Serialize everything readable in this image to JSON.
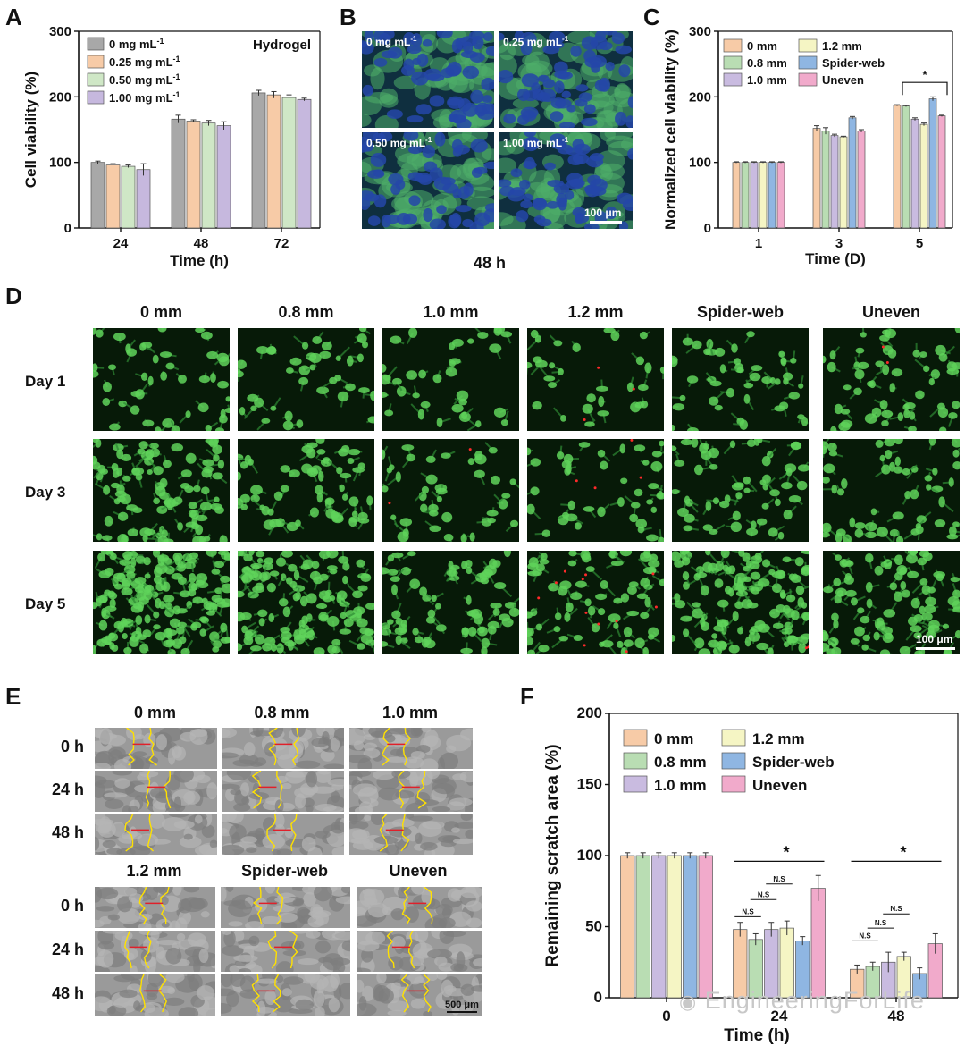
{
  "panels": {
    "A": {
      "letter": "A",
      "chart_data": {
        "type": "bar",
        "title": "Hydrogel",
        "xlabel": "Time (h)",
        "ylabel": "Cell viability (%)",
        "ylim": [
          0,
          300
        ],
        "yticks": [
          "0",
          "100",
          "200",
          "300"
        ],
        "categories": [
          "24",
          "48",
          "72"
        ],
        "legend_position": "top-left",
        "series": [
          {
            "name": "0 mg mL",
            "sup": "-1",
            "color": "#a8a8a8",
            "values": [
              100,
              166,
              206
            ],
            "errors": [
              2,
              6,
              4
            ]
          },
          {
            "name": "0.25 mg mL",
            "sup": "-1",
            "color": "#f7cba7",
            "values": [
              96,
              163,
              203
            ],
            "errors": [
              2,
              2,
              5
            ]
          },
          {
            "name": "0.50 mg mL",
            "sup": "-1",
            "color": "#cfe7c6",
            "values": [
              94,
              160,
              199
            ],
            "errors": [
              2,
              4,
              4
            ]
          },
          {
            "name": "1.00 mg mL",
            "sup": "-1",
            "color": "#c6b8de",
            "values": [
              89,
              156,
              196
            ],
            "errors": [
              9,
              6,
              2
            ]
          }
        ]
      }
    },
    "B": {
      "letter": "B",
      "caption": "48 h",
      "images": [
        {
          "label": "0 mg mL",
          "sup": "-1"
        },
        {
          "label": "0.25 mg mL",
          "sup": "-1"
        },
        {
          "label": "0.50 mg mL",
          "sup": "-1"
        },
        {
          "label": "1.00 mg mL",
          "sup": "-1"
        }
      ],
      "scale": "100 μm"
    },
    "C": {
      "letter": "C",
      "chart_data": {
        "type": "bar",
        "xlabel": "Time (D)",
        "ylabel": "Normalized cell viability (%)",
        "ylim": [
          0,
          300
        ],
        "yticks": [
          "0",
          "100",
          "200",
          "300"
        ],
        "categories": [
          "1",
          "3",
          "5"
        ],
        "legend_position": "top-left",
        "significance": {
          "label": "*",
          "category": "5"
        },
        "series": [
          {
            "name": "0 mm",
            "color": "#f7cba7",
            "values": [
              100,
              152,
              187
            ],
            "errors": [
              1,
              4,
              1
            ]
          },
          {
            "name": "0.8 mm",
            "color": "#b9ddb3",
            "values": [
              100,
              148,
              186
            ],
            "errors": [
              1,
              5,
              1
            ]
          },
          {
            "name": "1.0 mm",
            "color": "#c9bbe0",
            "values": [
              100,
              141,
              166
            ],
            "errors": [
              1,
              2,
              2
            ]
          },
          {
            "name": "1.2 mm",
            "color": "#f5f5c4",
            "values": [
              100,
              139,
              158
            ],
            "errors": [
              1,
              1,
              2
            ]
          },
          {
            "name": "Spider-web",
            "color": "#8fb6e2",
            "values": [
              100,
              168,
              197
            ],
            "errors": [
              1,
              2,
              3
            ]
          },
          {
            "name": "Uneven",
            "color": "#f1aacb",
            "values": [
              100,
              148,
              171
            ],
            "errors": [
              1,
              2,
              1
            ]
          }
        ]
      }
    },
    "D": {
      "letter": "D",
      "columns": [
        "0 mm",
        "0.8 mm",
        "1.0 mm",
        "1.2 mm",
        "Spider-web",
        "Uneven"
      ],
      "rows": [
        "Day 1",
        "Day 3",
        "Day 5"
      ],
      "scale": "100 μm"
    },
    "E": {
      "letter": "E",
      "groups_top": [
        "0 mm",
        "0.8 mm",
        "1.0 mm"
      ],
      "groups_bottom": [
        "1.2 mm",
        "Spider-web",
        "Uneven"
      ],
      "rows": [
        "0 h",
        "24 h",
        "48 h"
      ],
      "scale": "500 μm"
    },
    "F": {
      "letter": "F",
      "chart_data": {
        "type": "bar",
        "xlabel": "Time (h)",
        "ylabel": "Remaining scratch area (%)",
        "ylim": [
          0,
          200
        ],
        "yticks": [
          "0",
          "50",
          "100",
          "150",
          "200"
        ],
        "categories": [
          "0",
          "24",
          "48"
        ],
        "legend_position": "top-left",
        "annotations": [
          "N.S",
          "*"
        ],
        "series": [
          {
            "name": "0 mm",
            "color": "#f7cba7",
            "values": [
              100,
              48,
              20
            ],
            "errors": [
              2,
              5,
              3
            ]
          },
          {
            "name": "0.8 mm",
            "color": "#b9ddb3",
            "values": [
              100,
              41,
              22
            ],
            "errors": [
              2,
              4,
              3
            ]
          },
          {
            "name": "1.0 mm",
            "color": "#c9bbe0",
            "values": [
              100,
              48,
              25
            ],
            "errors": [
              2,
              5,
              7
            ]
          },
          {
            "name": "1.2 mm",
            "color": "#f5f5c4",
            "values": [
              100,
              49,
              29
            ],
            "errors": [
              2,
              5,
              3
            ]
          },
          {
            "name": "Spider-web",
            "color": "#8fb6e2",
            "values": [
              100,
              40,
              17
            ],
            "errors": [
              2,
              3,
              4
            ]
          },
          {
            "name": "Uneven",
            "color": "#f1aacb",
            "values": [
              100,
              77,
              38
            ],
            "errors": [
              2,
              9,
              7
            ]
          }
        ]
      }
    }
  },
  "watermark": "EngineeringForLife"
}
